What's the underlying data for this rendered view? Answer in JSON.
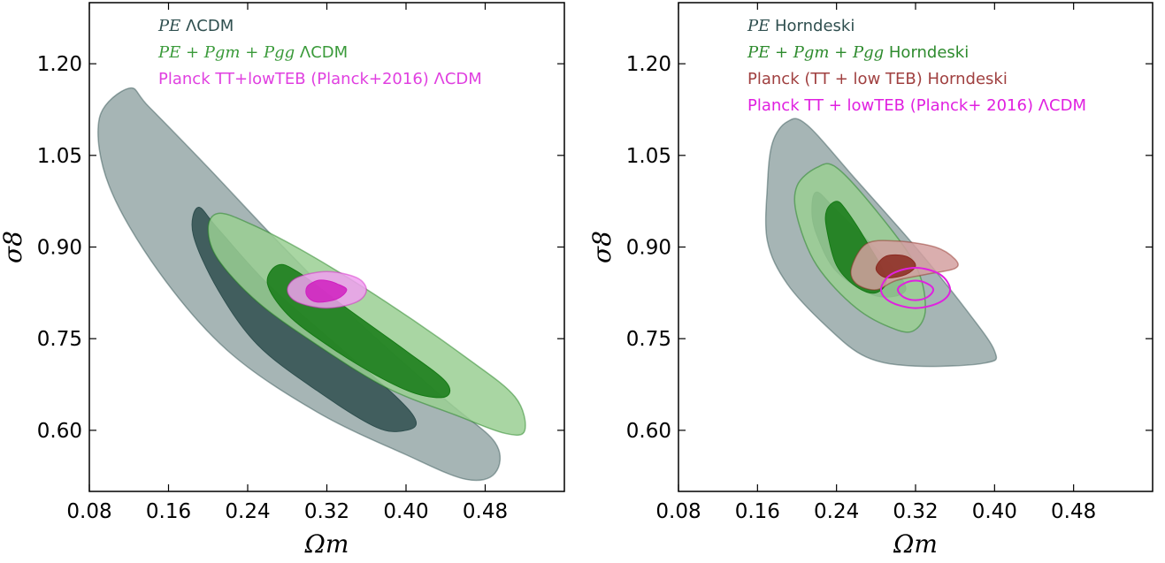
{
  "chart_data": [
    {
      "type": "contour",
      "xlabel": "Ωm",
      "ylabel": "σ8",
      "xlim": [
        0.08,
        0.56
      ],
      "ylim": [
        0.5,
        1.3
      ],
      "xticks": [
        "0.08",
        "0.16",
        "0.24",
        "0.32",
        "0.40",
        "0.48"
      ],
      "xtick_values": [
        0.08,
        0.16,
        0.24,
        0.32,
        0.4,
        0.48
      ],
      "yticks": [
        "0.60",
        "0.75",
        "0.90",
        "1.05",
        "1.20"
      ],
      "ytick_values": [
        0.6,
        0.75,
        0.9,
        1.05,
        1.2
      ],
      "legend_placement": "top-left",
      "legend": [
        {
          "math": "PE",
          "text": " ΛCDM",
          "color": "#2f4f4f"
        },
        {
          "math": "PE + Pgm + Pgg",
          "text": " ΛCDM",
          "color": "#3a9a3a"
        },
        {
          "math": "",
          "text": "Planck TT+lowTEB (Planck+2016) ΛCDM",
          "color": "#e040e0"
        }
      ],
      "series": [
        {
          "legend_index": 0,
          "color_outer": "#96a8a8",
          "color_inner": "#2f4f4f",
          "outer": [
            [
              0.12,
              1.16
            ],
            [
              0.14,
              1.13
            ],
            [
              0.2,
              1.03
            ],
            [
              0.27,
              0.91
            ],
            [
              0.35,
              0.78
            ],
            [
              0.44,
              0.65
            ],
            [
              0.49,
              0.58
            ],
            [
              0.49,
              0.53
            ],
            [
              0.46,
              0.52
            ],
            [
              0.4,
              0.56
            ],
            [
              0.31,
              0.63
            ],
            [
              0.22,
              0.73
            ],
            [
              0.15,
              0.86
            ],
            [
              0.1,
              1.0
            ],
            [
              0.09,
              1.11
            ]
          ],
          "inner": [
            [
              0.19,
              0.965
            ],
            [
              0.21,
              0.93
            ],
            [
              0.26,
              0.84
            ],
            [
              0.33,
              0.74
            ],
            [
              0.39,
              0.655
            ],
            [
              0.41,
              0.615
            ],
            [
              0.4,
              0.6
            ],
            [
              0.37,
              0.605
            ],
            [
              0.31,
              0.665
            ],
            [
              0.25,
              0.74
            ],
            [
              0.21,
              0.83
            ],
            [
              0.185,
              0.92
            ]
          ]
        },
        {
          "legend_index": 1,
          "color_outer": "#9acf93",
          "color_inner": "#157a15",
          "outer": [
            [
              0.21,
              0.955
            ],
            [
              0.24,
              0.94
            ],
            [
              0.3,
              0.89
            ],
            [
              0.38,
              0.81
            ],
            [
              0.46,
              0.72
            ],
            [
              0.51,
              0.655
            ],
            [
              0.52,
              0.6
            ],
            [
              0.5,
              0.595
            ],
            [
              0.45,
              0.625
            ],
            [
              0.38,
              0.67
            ],
            [
              0.31,
              0.74
            ],
            [
              0.25,
              0.81
            ],
            [
              0.21,
              0.88
            ],
            [
              0.2,
              0.93
            ]
          ],
          "inner": [
            [
              0.27,
              0.87
            ],
            [
              0.29,
              0.86
            ],
            [
              0.34,
              0.8
            ],
            [
              0.4,
              0.73
            ],
            [
              0.44,
              0.68
            ],
            [
              0.44,
              0.655
            ],
            [
              0.41,
              0.66
            ],
            [
              0.37,
              0.69
            ],
            [
              0.32,
              0.74
            ],
            [
              0.28,
              0.79
            ],
            [
              0.26,
              0.84
            ]
          ]
        },
        {
          "legend_index": 2,
          "color_outer": "#f0a0f0",
          "color_inner": "#d020c0",
          "outer": [
            [
              0.32,
              0.86
            ],
            [
              0.35,
              0.85
            ],
            [
              0.36,
              0.83
            ],
            [
              0.35,
              0.81
            ],
            [
              0.32,
              0.8
            ],
            [
              0.29,
              0.81
            ],
            [
              0.28,
              0.83
            ],
            [
              0.29,
              0.85
            ]
          ],
          "inner": [
            [
              0.32,
              0.845
            ],
            [
              0.33,
              0.84
            ],
            [
              0.34,
              0.83
            ],
            [
              0.33,
              0.815
            ],
            [
              0.31,
              0.81
            ],
            [
              0.3,
              0.82
            ],
            [
              0.3,
              0.835
            ],
            [
              0.31,
              0.845
            ]
          ]
        }
      ]
    },
    {
      "type": "contour",
      "xlabel": "Ωm",
      "ylabel": "σ8",
      "xlim": [
        0.08,
        0.56
      ],
      "ylim": [
        0.5,
        1.3
      ],
      "xticks": [
        "0.08",
        "0.16",
        "0.24",
        "0.32",
        "0.40",
        "0.48"
      ],
      "xtick_values": [
        0.08,
        0.16,
        0.24,
        0.32,
        0.4,
        0.48
      ],
      "yticks": [
        "0.60",
        "0.75",
        "0.90",
        "1.05",
        "1.20"
      ],
      "ytick_values": [
        0.6,
        0.75,
        0.9,
        1.05,
        1.2
      ],
      "legend_placement": "top-left",
      "legend": [
        {
          "math": "PE",
          "text": " Horndeski",
          "color": "#2f4f4f"
        },
        {
          "math": "PE + Pgm + Pgg",
          "text": " Horndeski",
          "color": "#2e8b2e"
        },
        {
          "math": "",
          "text": "Planck (TT + low TEB) Horndeski",
          "color": "#a04040"
        },
        {
          "math": "",
          "text": "Planck TT + lowTEB (Planck+ 2016) ΛCDM",
          "color": "#e020e0"
        }
      ],
      "series": [
        {
          "legend_index": 0,
          "color_outer": "#96a8a8",
          "color_inner": "#2f4f4f",
          "outer": [
            [
              0.19,
              1.105
            ],
            [
              0.21,
              1.1
            ],
            [
              0.26,
              1.01
            ],
            [
              0.32,
              0.9
            ],
            [
              0.37,
              0.8
            ],
            [
              0.4,
              0.73
            ],
            [
              0.39,
              0.71
            ],
            [
              0.32,
              0.705
            ],
            [
              0.27,
              0.72
            ],
            [
              0.23,
              0.77
            ],
            [
              0.19,
              0.84
            ],
            [
              0.17,
              0.91
            ],
            [
              0.17,
              1.0
            ],
            [
              0.175,
              1.07
            ]
          ],
          "inner": [
            [
              0.22,
              0.99
            ],
            [
              0.24,
              0.96
            ],
            [
              0.29,
              0.88
            ],
            [
              0.31,
              0.83
            ],
            [
              0.28,
              0.82
            ],
            [
              0.24,
              0.86
            ],
            [
              0.22,
              0.92
            ],
            [
              0.215,
              0.96
            ]
          ]
        },
        {
          "legend_index": 1,
          "color_outer": "#9acf93",
          "color_inner": "#157a15",
          "outer": [
            [
              0.22,
              1.03
            ],
            [
              0.24,
              1.03
            ],
            [
              0.28,
              0.96
            ],
            [
              0.32,
              0.87
            ],
            [
              0.33,
              0.8
            ],
            [
              0.32,
              0.765
            ],
            [
              0.3,
              0.765
            ],
            [
              0.26,
              0.8
            ],
            [
              0.22,
              0.87
            ],
            [
              0.2,
              0.95
            ],
            [
              0.2,
              1.0
            ]
          ],
          "inner": [
            [
              0.24,
              0.975
            ],
            [
              0.25,
              0.96
            ],
            [
              0.27,
              0.91
            ],
            [
              0.29,
              0.85
            ],
            [
              0.28,
              0.825
            ],
            [
              0.26,
              0.835
            ],
            [
              0.24,
              0.87
            ],
            [
              0.23,
              0.93
            ],
            [
              0.23,
              0.96
            ]
          ]
        },
        {
          "legend_index": 2,
          "color_outer": "#d4a0a0",
          "color_inner": "#8b2a20",
          "outer": [
            [
              0.27,
              0.905
            ],
            [
              0.3,
              0.91
            ],
            [
              0.34,
              0.9
            ],
            [
              0.36,
              0.88
            ],
            [
              0.36,
              0.865
            ],
            [
              0.33,
              0.855
            ],
            [
              0.3,
              0.845
            ],
            [
              0.28,
              0.83
            ],
            [
              0.26,
              0.84
            ],
            [
              0.255,
              0.865
            ]
          ],
          "inner": [
            [
              0.29,
              0.885
            ],
            [
              0.31,
              0.885
            ],
            [
              0.32,
              0.87
            ],
            [
              0.31,
              0.855
            ],
            [
              0.29,
              0.85
            ],
            [
              0.28,
              0.865
            ]
          ]
        }
      ],
      "line_series": [
        {
          "legend_index": 3,
          "color": "#e020e0",
          "outer": [
            [
              0.32,
              0.866
            ],
            [
              0.345,
              0.855
            ],
            [
              0.355,
              0.83
            ],
            [
              0.345,
              0.81
            ],
            [
              0.32,
              0.8
            ],
            [
              0.295,
              0.81
            ],
            [
              0.285,
              0.83
            ],
            [
              0.295,
              0.855
            ]
          ],
          "inner": [
            [
              0.32,
              0.845
            ],
            [
              0.332,
              0.84
            ],
            [
              0.338,
              0.83
            ],
            [
              0.332,
              0.818
            ],
            [
              0.32,
              0.813
            ],
            [
              0.308,
              0.818
            ],
            [
              0.302,
              0.83
            ],
            [
              0.308,
              0.84
            ]
          ]
        }
      ]
    }
  ]
}
